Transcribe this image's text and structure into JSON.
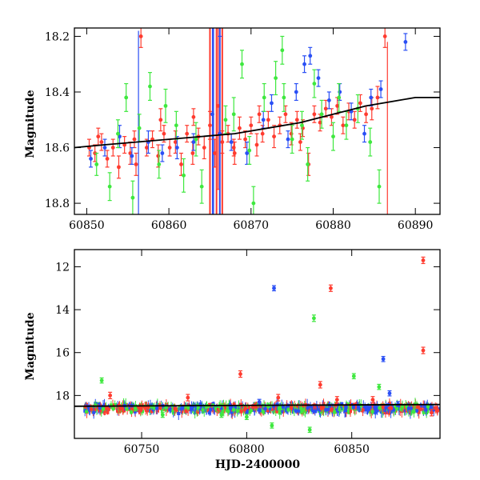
{
  "chart_data": [
    {
      "type": "scatter",
      "ylabel": "Magnitude",
      "xlabel": "",
      "xlim": [
        60848.5,
        60893
      ],
      "ylim": [
        18.84,
        18.17
      ],
      "y_inverted": true,
      "xticks": [
        60850,
        60860,
        60870,
        60880,
        60890
      ],
      "yticks": [
        18.2,
        18.4,
        18.6,
        18.8
      ],
      "series": [
        {
          "color": "#ff3b2f",
          "points": [
            [
              60850.3,
              18.6,
              0.03
            ],
            [
              60851.0,
              18.62,
              0.03
            ],
            [
              60851.8,
              18.58,
              0.03
            ],
            [
              60852.5,
              18.64,
              0.03
            ],
            [
              60853.2,
              18.6,
              0.03
            ],
            [
              60853.9,
              18.67,
              0.04
            ],
            [
              60854.6,
              18.59,
              0.03
            ],
            [
              60855.3,
              18.62,
              0.04
            ],
            [
              60856.0,
              18.66,
              0.04
            ],
            [
              60856.6,
              18.2,
              0.04
            ],
            [
              60857.3,
              18.6,
              0.03
            ],
            [
              60858.0,
              18.57,
              0.03
            ],
            [
              60858.7,
              18.63,
              0.04
            ],
            [
              60859.4,
              18.55,
              0.03
            ],
            [
              60860.1,
              18.6,
              0.03
            ],
            [
              60860.8,
              18.58,
              0.04
            ],
            [
              60861.5,
              18.66,
              0.04
            ],
            [
              60862.2,
              18.55,
              0.03
            ],
            [
              60862.9,
              18.62,
              0.04
            ],
            [
              60863.6,
              18.56,
              0.03
            ],
            [
              60864.3,
              18.6,
              0.04
            ],
            [
              60865.0,
              18.52,
              0.05
            ],
            [
              60865.6,
              18.62,
              0.05
            ],
            [
              60866.0,
              18.45,
              0.3
            ],
            [
              60866.5,
              18.58,
              0.04
            ],
            [
              60867.2,
              18.55,
              0.03
            ],
            [
              60867.9,
              18.6,
              0.03
            ],
            [
              60868.6,
              18.53,
              0.04
            ],
            [
              60869.3,
              18.57,
              0.03
            ],
            [
              60870.0,
              18.52,
              0.03
            ],
            [
              60870.7,
              18.59,
              0.04
            ],
            [
              60871.4,
              18.55,
              0.03
            ],
            [
              60872.1,
              18.5,
              0.03
            ],
            [
              60872.8,
              18.56,
              0.04
            ],
            [
              60873.5,
              18.52,
              0.03
            ],
            [
              60874.2,
              18.48,
              0.03
            ],
            [
              60874.9,
              18.55,
              0.04
            ],
            [
              60875.6,
              18.5,
              0.03
            ],
            [
              60876.3,
              18.53,
              0.03
            ],
            [
              60877.0,
              18.66,
              0.04
            ],
            [
              60877.7,
              18.48,
              0.03
            ],
            [
              60878.4,
              18.51,
              0.03
            ],
            [
              60879.1,
              18.46,
              0.03
            ],
            [
              60879.8,
              18.49,
              0.03
            ],
            [
              60880.5,
              18.45,
              0.03
            ],
            [
              60881.2,
              18.52,
              0.03
            ],
            [
              60881.9,
              18.47,
              0.03
            ],
            [
              60882.6,
              18.5,
              0.03
            ],
            [
              60883.3,
              18.44,
              0.03
            ],
            [
              60884.0,
              18.48,
              0.03
            ],
            [
              60884.7,
              18.46,
              0.04
            ],
            [
              60885.4,
              18.42,
              0.04
            ],
            [
              60886.3,
              18.2,
              0.04
            ],
            [
              60851.4,
              18.56,
              0.03
            ],
            [
              60855.8,
              18.57,
              0.03
            ],
            [
              60859.0,
              18.5,
              0.04
            ],
            [
              60863.0,
              18.49,
              0.03
            ],
            [
              60868.0,
              18.62,
              0.04
            ],
            [
              60871.0,
              18.48,
              0.03
            ],
            [
              60876.0,
              18.58,
              0.03
            ]
          ]
        },
        {
          "color": "#2a4ff5",
          "points": [
            [
              60850.5,
              18.64,
              0.03
            ],
            [
              60852.2,
              18.6,
              0.03
            ],
            [
              60854.0,
              18.56,
              0.04
            ],
            [
              60855.5,
              18.63,
              0.03
            ],
            [
              60857.5,
              18.58,
              0.04
            ],
            [
              60859.2,
              18.62,
              0.03
            ],
            [
              60861.0,
              18.6,
              0.04
            ],
            [
              60863.0,
              18.58,
              0.03
            ],
            [
              60865.3,
              18.48,
              0.4
            ],
            [
              60866.2,
              18.55,
              0.35
            ],
            [
              60867.6,
              18.58,
              0.03
            ],
            [
              60869.5,
              18.62,
              0.04
            ],
            [
              60871.5,
              18.5,
              0.03
            ],
            [
              60872.5,
              18.44,
              0.03
            ],
            [
              60874.5,
              18.57,
              0.03
            ],
            [
              60875.5,
              18.4,
              0.03
            ],
            [
              60876.5,
              18.3,
              0.03
            ],
            [
              60877.2,
              18.27,
              0.03
            ],
            [
              60878.2,
              18.35,
              0.03
            ],
            [
              60879.5,
              18.43,
              0.03
            ],
            [
              60880.8,
              18.4,
              0.03
            ],
            [
              60882.2,
              18.47,
              0.03
            ],
            [
              60883.8,
              18.55,
              0.03
            ],
            [
              60884.6,
              18.42,
              0.03
            ],
            [
              60885.8,
              18.39,
              0.03
            ],
            [
              60888.8,
              18.22,
              0.03
            ]
          ]
        },
        {
          "color": "#3ee83e",
          "points": [
            [
              60851.2,
              18.66,
              0.04
            ],
            [
              60852.8,
              18.74,
              0.05
            ],
            [
              60853.8,
              18.55,
              0.05
            ],
            [
              60854.8,
              18.42,
              0.05
            ],
            [
              60855.6,
              18.78,
              0.06
            ],
            [
              60856.4,
              18.53,
              0.05
            ],
            [
              60857.7,
              18.38,
              0.05
            ],
            [
              60858.8,
              18.66,
              0.05
            ],
            [
              60859.6,
              18.45,
              0.06
            ],
            [
              60860.9,
              18.52,
              0.05
            ],
            [
              60861.8,
              18.7,
              0.06
            ],
            [
              60863.3,
              18.57,
              0.06
            ],
            [
              60864.0,
              18.74,
              0.06
            ],
            [
              60866.9,
              18.5,
              0.05
            ],
            [
              60867.9,
              18.48,
              0.06
            ],
            [
              60868.9,
              18.3,
              0.05
            ],
            [
              60869.8,
              18.61,
              0.05
            ],
            [
              60870.3,
              18.8,
              0.06
            ],
            [
              60871.6,
              18.42,
              0.05
            ],
            [
              60873.0,
              18.35,
              0.06
            ],
            [
              60874.0,
              18.42,
              0.05
            ],
            [
              60875.0,
              18.57,
              0.05
            ],
            [
              60876.2,
              18.52,
              0.05
            ],
            [
              60876.9,
              18.66,
              0.06
            ],
            [
              60878.6,
              18.48,
              0.05
            ],
            [
              60880.0,
              18.56,
              0.05
            ],
            [
              60880.7,
              18.42,
              0.05
            ],
            [
              60881.6,
              18.52,
              0.05
            ],
            [
              60883.0,
              18.46,
              0.05
            ],
            [
              60884.5,
              18.58,
              0.05
            ],
            [
              60885.6,
              18.74,
              0.06
            ],
            [
              60873.8,
              18.25,
              0.05
            ],
            [
              60877.7,
              18.37,
              0.05
            ]
          ]
        }
      ],
      "model_curve": {
        "color": "#000000",
        "x": [
          60848.5,
          60852,
          60856,
          60860,
          60864,
          60868,
          60872,
          60876,
          60880,
          60884,
          60888,
          60890,
          60893
        ],
        "y": [
          18.6,
          18.59,
          18.58,
          18.57,
          18.56,
          18.55,
          18.53,
          18.51,
          18.48,
          18.45,
          18.43,
          18.42,
          18.42
        ]
      }
    },
    {
      "type": "scatter",
      "ylabel": "Magnitude",
      "xlabel": "HJD-2400000",
      "xlim": [
        60718,
        60892
      ],
      "ylim": [
        20.0,
        11.2
      ],
      "y_inverted": true,
      "xticks": [
        60750,
        60800,
        60850
      ],
      "yticks": [
        12,
        14,
        16,
        18
      ],
      "series": [
        {
          "color": "#ff3b2f",
          "points": [
            [
              60735,
              18.0,
              0.15
            ],
            [
              60772,
              18.1,
              0.15
            ],
            [
              60797,
              17.0,
              0.15
            ],
            [
              60815,
              18.1,
              0.15
            ],
            [
              60835,
              17.5,
              0.15
            ],
            [
              60840,
              13.0,
              0.15
            ],
            [
              60843,
              18.2,
              0.15
            ],
            [
              60860,
              18.2,
              0.15
            ],
            [
              60884,
              11.7,
              0.15
            ],
            [
              60884,
              15.9,
              0.15
            ],
            [
              60888,
              18.8,
              0.15
            ]
          ]
        },
        {
          "color": "#2a4ff5",
          "points": [
            [
              60813,
              13.0,
              0.12
            ],
            [
              60865,
              16.3,
              0.12
            ],
            [
              60868,
              17.9,
              0.12
            ],
            [
              60806,
              18.3,
              0.12
            ],
            [
              60872,
              18.4,
              0.12
            ]
          ]
        },
        {
          "color": "#3ee83e",
          "points": [
            [
              60731,
              17.3,
              0.12
            ],
            [
              60747,
              18.6,
              0.12
            ],
            [
              60788,
              18.9,
              0.12
            ],
            [
              60832,
              14.4,
              0.15
            ],
            [
              60851,
              17.1,
              0.12
            ],
            [
              60863,
              17.6,
              0.12
            ],
            [
              60812,
              19.4,
              0.12
            ],
            [
              60830,
              19.6,
              0.12
            ],
            [
              60760,
              18.9,
              0.12
            ],
            [
              60800,
              19.0,
              0.12
            ]
          ]
        }
      ],
      "band": {
        "start": 60723,
        "end": 60891,
        "mean": 18.6,
        "spread": 0.2
      },
      "model_curve": {
        "color": "#000000",
        "x": [
          60718,
          60892
        ],
        "y": [
          18.5,
          18.42
        ]
      }
    }
  ]
}
